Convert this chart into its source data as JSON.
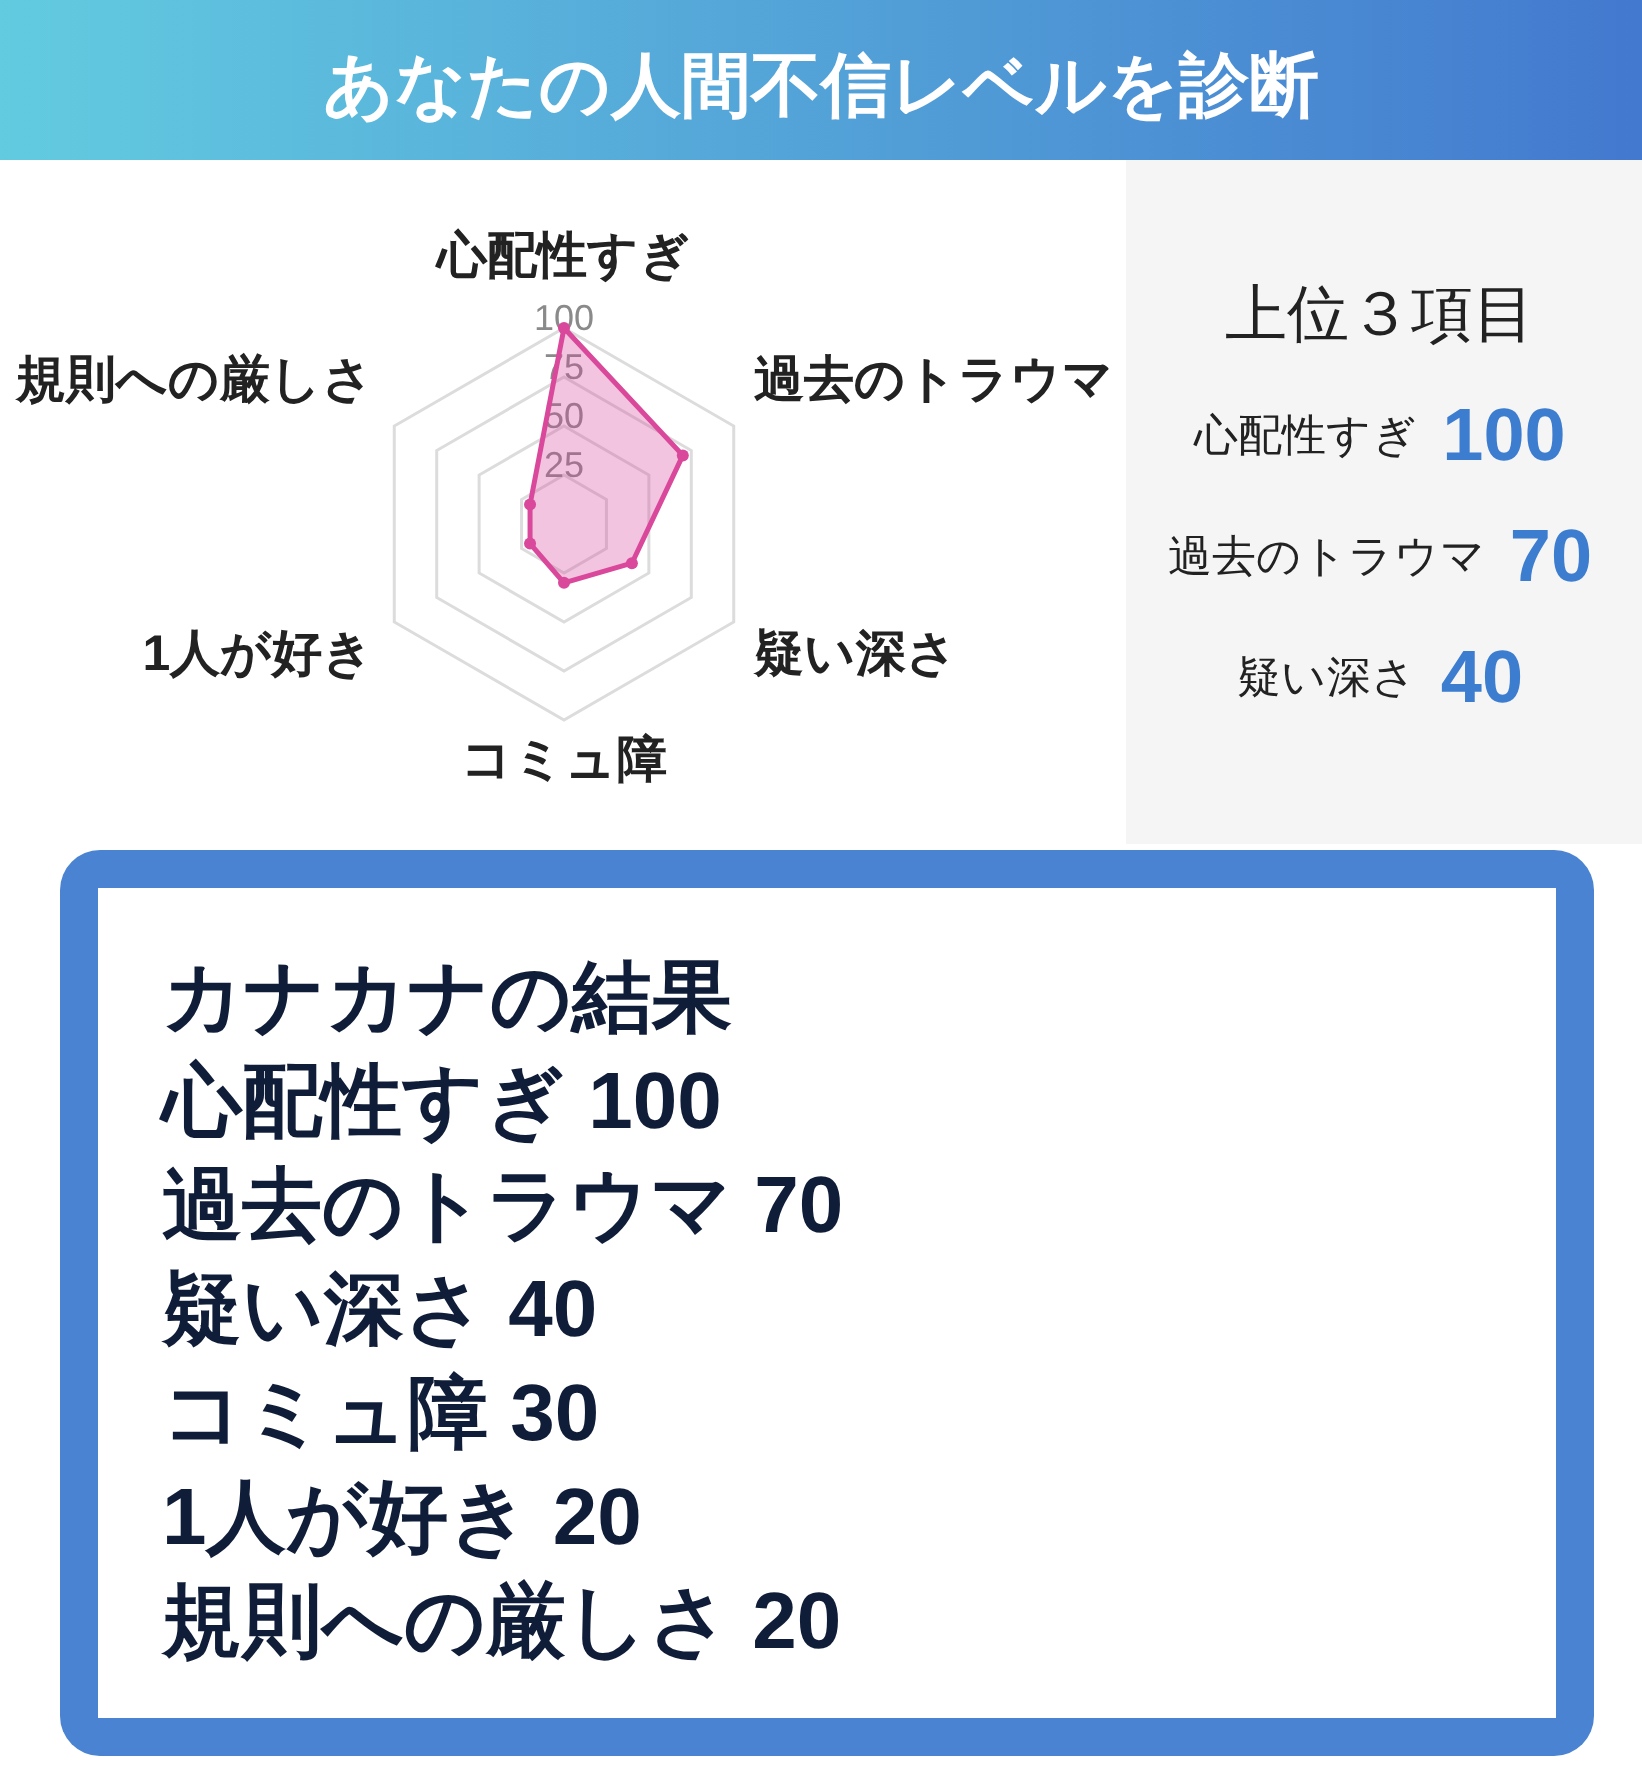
{
  "chart_data": [
    {
      "type": "radar",
      "title": "あなたの人間不信レベルを診断",
      "categories": [
        "心配性すぎ",
        "過去のトラウマ",
        "疑い深さ",
        "コミュ障",
        "1人が好き",
        "規則への厳しさ"
      ],
      "series": [
        {
          "color": "#d9489b",
          "values": [
            100,
            70,
            40,
            30,
            20,
            20
          ]
        }
      ],
      "ylim": [
        0,
        100
      ],
      "yticks": [
        25,
        50,
        75,
        100
      ],
      "grid": true,
      "marker": "circle"
    },
    {
      "type": "other",
      "title": "上位３項目",
      "annotations": [
        "心配性すぎ",
        "100",
        "過去のトラウマ",
        "70",
        "疑い深さ",
        "40"
      ]
    },
    {
      "type": "other",
      "title": "カナカナの結果",
      "annotations": [
        "心配性すぎ 100",
        "過去のトラウマ 70",
        "疑い深さ 40",
        "コミュ障 30",
        "1人が好き 20",
        "規則への厳しさ 20"
      ]
    }
  ]
}
